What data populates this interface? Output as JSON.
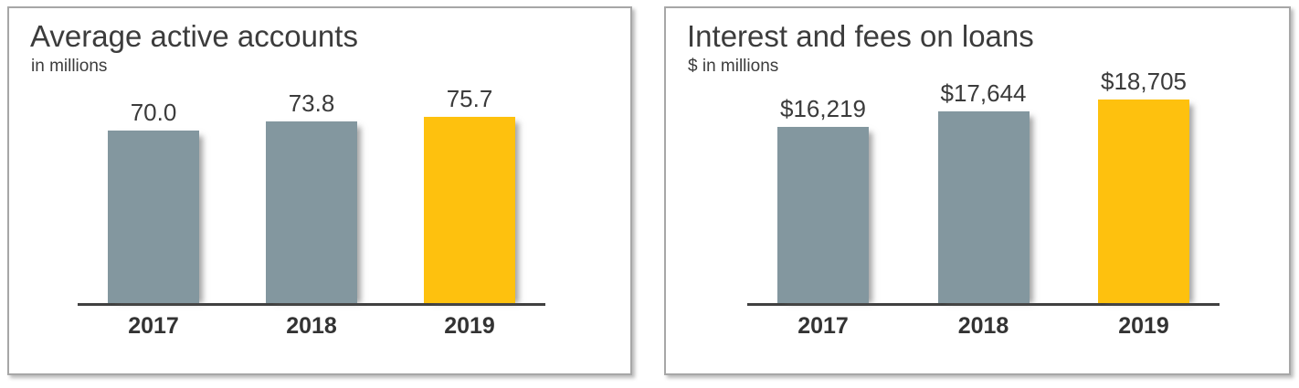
{
  "colors": {
    "bar_gray": "#83979F",
    "bar_gold": "#FEC10E",
    "axis": "#404040",
    "text": "#3C3C3C",
    "panel_border": "#A7A7A7",
    "panel_bg": "#FFFFFF"
  },
  "chart_data": [
    {
      "type": "bar",
      "title": "Average active accounts",
      "subtitle": "in millions",
      "categories": [
        "2017",
        "2018",
        "2019"
      ],
      "values": [
        70.0,
        73.8,
        75.7
      ],
      "value_labels": [
        "70.0",
        "73.8",
        "75.7"
      ],
      "bar_colors": [
        "#83979F",
        "#83979F",
        "#FEC10E"
      ],
      "ylim": [
        0,
        80
      ],
      "xlabel": "",
      "ylabel": "in millions",
      "grid": false,
      "legend": false,
      "highlight_category": "2019"
    },
    {
      "type": "bar",
      "title": "Interest and fees on loans",
      "subtitle": "$ in millions",
      "categories": [
        "2017",
        "2018",
        "2019"
      ],
      "values": [
        16219,
        17644,
        18705
      ],
      "value_labels": [
        "$16,219",
        "$17,644",
        "$18,705"
      ],
      "bar_colors": [
        "#83979F",
        "#83979F",
        "#FEC10E"
      ],
      "ylim": [
        0,
        20000
      ],
      "xlabel": "",
      "ylabel": "$ in millions",
      "grid": false,
      "legend": false,
      "highlight_category": "2019"
    }
  ]
}
